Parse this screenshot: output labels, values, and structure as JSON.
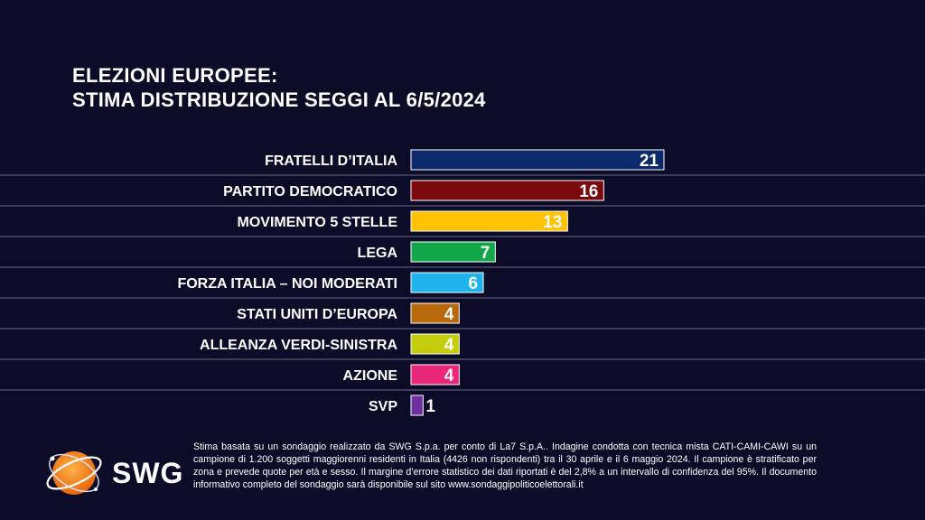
{
  "title": {
    "line1": "ELEZIONI EUROPEE:",
    "line2": "STIMA DISTRIBUZIONE SEGGI AL 6/5/2024"
  },
  "chart_data": {
    "type": "bar",
    "orientation": "horizontal",
    "categories": [
      "FRATELLI D’ITALIA",
      "PARTITO DEMOCRATICO",
      "MOVIMENTO 5 STELLE",
      "LEGA",
      "FORZA ITALIA – NOI MODERATI",
      "STATI UNITI D’EUROPA",
      "ALLEANZA VERDI-SINISTRA",
      "AZIONE",
      "SVP"
    ],
    "values": [
      21,
      16,
      13,
      7,
      6,
      4,
      4,
      4,
      1
    ],
    "colors": [
      "#0c2a6b",
      "#7a0a0d",
      "#ffc200",
      "#12a84a",
      "#1fb3ec",
      "#b8690b",
      "#c5cc0c",
      "#e8267a",
      "#6d2fa0"
    ],
    "xlim": [
      0,
      21
    ],
    "grid": false,
    "legend": "none",
    "data_labels": true
  },
  "footer": {
    "logo_text": "SWG",
    "note": "Stima basata su un sondaggio realizzato da SWG S.p.a. per conto di La7 S.p.A.. Indagine condotta con tecnica mista CATI-CAMI-CAWI su un campione di 1.200 soggetti maggiorenni residenti in Italia (4426 non rispondenti) tra il 30 aprile e il 6 maggio 2024. Il campione è stratificato per zona e prevede quote per età e sesso. Il margine d’errore statistico dei dati riportati è del 2,8% a un intervallo di confidenza del 95%. Il documento informativo completo del sondaggio sarà disponibile sul sito www.sondaggipoliticoelettorali.it"
  }
}
